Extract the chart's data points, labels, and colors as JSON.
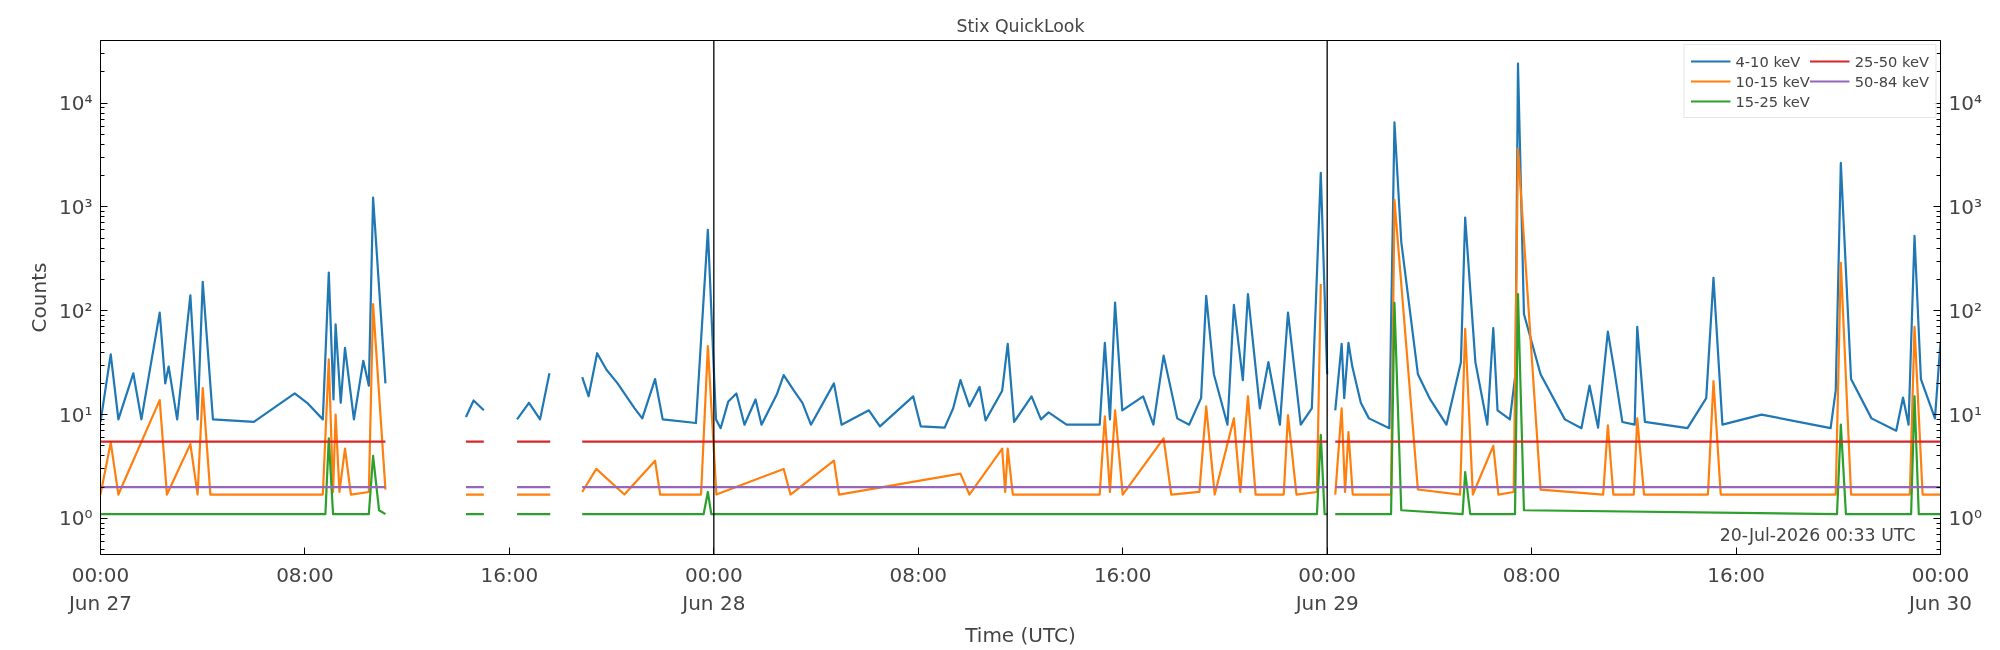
{
  "chart_data": {
    "type": "line",
    "title": "Stix QuickLook",
    "xlabel": "Time (UTC)",
    "ylabel": "Counts",
    "log": "y",
    "grid": false,
    "legend": "top right",
    "marker": "none",
    "line_style": "solid",
    "xlim": [
      "2026-06-27T00:00",
      "2026-06-30T00:00"
    ],
    "ylim": [
      0.45,
      40000
    ],
    "xticks": [
      {
        "value": "2026-06-27T00:00",
        "label": "00:00\nJun 27"
      },
      {
        "value": "2026-06-27T08:00",
        "label": "08:00"
      },
      {
        "value": "2026-06-27T16:00",
        "label": "16:00"
      },
      {
        "value": "2026-06-28T00:00",
        "label": "00:00\nJun 28"
      },
      {
        "value": "2026-06-28T08:00",
        "label": "08:00"
      },
      {
        "value": "2026-06-28T16:00",
        "label": "16:00"
      },
      {
        "value": "2026-06-29T00:00",
        "label": "00:00\nJun 29"
      },
      {
        "value": "2026-06-29T08:00",
        "label": "08:00"
      },
      {
        "value": "2026-06-29T16:00",
        "label": "16:00"
      },
      {
        "value": "2026-06-30T00:00",
        "label": "00:00\nJun 30"
      }
    ],
    "yticks": [
      {
        "value": 1,
        "label": "10⁰"
      },
      {
        "value": 10,
        "label": "10¹"
      },
      {
        "value": 100,
        "label": "10²"
      },
      {
        "value": 1000,
        "label": "10³"
      },
      {
        "value": 10000,
        "label": "10⁴"
      }
    ],
    "ref_lines": [
      {
        "axis": "x",
        "value": "2026-06-28T00:00",
        "color": "#000000"
      },
      {
        "axis": "x",
        "value": "2026-06-29T00:00",
        "color": "#000000"
      }
    ],
    "annotations": [
      "20-Jul-2026 00:33 UTC"
    ],
    "series": [
      {
        "name": "4-10 keV",
        "color": "#1f77b4",
        "x": [
          "2026-06-27T00:00",
          "2026-06-27T00:24",
          "2026-06-27T00:42",
          "2026-06-27T01:17",
          "2026-06-27T01:36",
          "2026-06-27T02:19",
          "2026-06-27T02:32",
          "2026-06-27T02:40",
          "2026-06-27T03:00",
          "2026-06-27T03:31",
          "2026-06-27T03:48",
          "2026-06-27T04:00",
          "2026-06-27T04:24",
          "2026-06-27T06:00",
          "2026-06-27T07:36",
          "2026-06-27T08:05",
          "2026-06-27T08:42",
          "2026-06-27T08:56",
          "2026-06-27T09:07",
          "2026-06-27T09:12",
          "2026-06-27T09:24",
          "2026-06-27T09:34",
          "2026-06-27T09:55",
          "2026-06-27T10:17",
          "2026-06-27T10:30",
          "2026-06-27T10:40",
          "2026-06-27T11:09",
          "2026-06-27T12:30",
          "2026-06-27T14:18",
          "2026-06-27T14:36",
          "2026-06-27T15:00",
          "2026-06-27T15:30",
          "2026-06-27T16:18",
          "2026-06-27T16:46",
          "2026-06-27T17:12",
          "2026-06-27T17:34",
          "2026-06-27T18:12",
          "2026-06-27T18:51",
          "2026-06-27T19:06",
          "2026-06-27T19:26",
          "2026-06-27T19:48",
          "2026-06-27T20:14",
          "2026-06-27T20:54",
          "2026-06-27T21:12",
          "2026-06-27T21:42",
          "2026-06-27T22:00",
          "2026-06-27T23:18",
          "2026-06-27T23:46",
          "2026-06-28T00:05",
          "2026-06-28T00:16",
          "2026-06-28T00:34",
          "2026-06-28T00:53",
          "2026-06-28T01:12",
          "2026-06-28T01:38",
          "2026-06-28T01:52",
          "2026-06-28T02:28",
          "2026-06-28T02:44",
          "2026-06-28T03:08",
          "2026-06-28T03:28",
          "2026-06-28T03:48",
          "2026-06-28T04:42",
          "2026-06-28T05:00",
          "2026-06-28T06:04",
          "2026-06-28T06:30",
          "2026-06-28T07:48",
          "2026-06-28T08:06",
          "2026-06-28T09:02",
          "2026-06-28T09:22",
          "2026-06-28T09:39",
          "2026-06-28T10:00",
          "2026-06-28T10:24",
          "2026-06-28T10:38",
          "2026-06-28T11:17",
          "2026-06-28T11:30",
          "2026-06-28T11:45",
          "2026-06-28T12:26",
          "2026-06-28T12:48",
          "2026-06-28T13:06",
          "2026-06-28T13:48",
          "2026-06-28T15:06",
          "2026-06-28T15:18",
          "2026-06-28T15:30",
          "2026-06-28T15:42",
          "2026-06-28T15:59",
          "2026-06-28T16:48",
          "2026-06-28T17:12",
          "2026-06-28T17:36",
          "2026-06-28T17:46",
          "2026-06-28T18:08",
          "2026-06-28T18:36",
          "2026-06-28T19:04",
          "2026-06-28T19:16",
          "2026-06-28T19:34",
          "2026-06-28T20:06",
          "2026-06-28T20:21",
          "2026-06-28T20:42",
          "2026-06-28T20:54",
          "2026-06-28T21:22",
          "2026-06-28T21:42",
          "2026-06-28T22:09",
          "2026-06-28T22:28",
          "2026-06-28T22:58",
          "2026-06-28T23:24",
          "2026-06-28T23:45",
          "2026-06-29T00:00",
          "2026-06-29T00:09",
          "2026-06-29T00:19",
          "2026-06-29T00:34",
          "2026-06-29T00:40",
          "2026-06-29T00:50",
          "2026-06-29T00:59",
          "2026-06-29T01:19",
          "2026-06-29T01:38",
          "2026-06-29T02:26",
          "2026-06-29T02:38",
          "2026-06-29T02:54",
          "2026-06-29T03:33",
          "2026-06-29T04:02",
          "2026-06-29T04:40",
          "2026-06-29T05:14",
          "2026-06-29T05:24",
          "2026-06-29T05:48",
          "2026-06-29T06:16",
          "2026-06-29T06:30",
          "2026-06-29T06:40",
          "2026-06-29T07:09",
          "2026-06-29T07:22",
          "2026-06-29T07:28",
          "2026-06-29T07:42",
          "2026-06-29T08:21",
          "2026-06-29T09:18",
          "2026-06-29T09:57",
          "2026-06-29T10:16",
          "2026-06-29T10:36",
          "2026-06-29T10:59",
          "2026-06-29T11:14",
          "2026-06-29T11:33",
          "2026-06-29T12:02",
          "2026-06-29T12:08",
          "2026-06-29T12:26",
          "2026-06-29T14:06",
          "2026-06-29T14:50",
          "2026-06-29T15:07",
          "2026-06-29T15:28",
          "2026-06-29T17:00",
          "2026-06-29T19:42",
          "2026-06-29T19:54",
          "2026-06-29T20:06",
          "2026-06-29T20:30",
          "2026-06-29T21:18",
          "2026-06-29T22:16",
          "2026-06-29T22:32",
          "2026-06-29T22:45",
          "2026-06-29T22:59",
          "2026-06-29T23:14",
          "2026-06-29T23:47",
          "2026-06-30T00:00"
        ],
        "values": [
          8.5,
          38,
          9,
          25,
          9,
          96,
          20,
          29,
          9,
          141,
          9,
          190,
          9,
          8.5,
          16,
          13,
          9,
          233,
          14,
          74,
          13,
          44,
          9,
          33,
          19,
          1230,
          20,
          null,
          9.5,
          13.7,
          11,
          null,
          9,
          13,
          9,
          25,
          null,
          23,
          15,
          39,
          27,
          20,
          11.5,
          9.2,
          22,
          9,
          8.3,
          600,
          9,
          7.4,
          13.4,
          16,
          8,
          14,
          8,
          15.7,
          24,
          17,
          13,
          8,
          20,
          8,
          11,
          7.7,
          15,
          7.7,
          7.5,
          11.5,
          21.5,
          12,
          18.5,
          8.8,
          17,
          48,
          8.5,
          15,
          9,
          10.5,
          8,
          8,
          49,
          9,
          120,
          11,
          15,
          8,
          37,
          24,
          9.2,
          8,
          14.4,
          139,
          24.5,
          8,
          114,
          21.5,
          145,
          11.5,
          32,
          8,
          96,
          8,
          11.5,
          2130,
          24.5,
          null,
          11,
          48,
          14.4,
          49,
          29,
          13,
          9.2,
          7.4,
          6500,
          460,
          24.5,
          14,
          8,
          32,
          790,
          32,
          8,
          68,
          11,
          9,
          24.5,
          24000,
          93,
          24.5,
          9,
          7.4,
          19,
          7.5,
          63,
          27,
          8.5,
          8,
          70,
          8.5,
          7.4,
          14.4,
          207,
          8,
          10,
          7.4,
          17,
          2650,
          22,
          9.2,
          7,
          14.6,
          8,
          525,
          22,
          9.2,
          50
        ]
      },
      {
        "name": "10-15 keV",
        "color": "#ff7f0e",
        "x": [
          "2026-06-27T00:00",
          "2026-06-27T00:24",
          "2026-06-27T00:42",
          "2026-06-27T02:19",
          "2026-06-27T02:36",
          "2026-06-27T03:31",
          "2026-06-27T03:48",
          "2026-06-27T04:00",
          "2026-06-27T04:18",
          "2026-06-27T08:42",
          "2026-06-27T08:56",
          "2026-06-27T09:06",
          "2026-06-27T09:12",
          "2026-06-27T09:21",
          "2026-06-27T09:34",
          "2026-06-27T09:48",
          "2026-06-27T10:30",
          "2026-06-27T10:40",
          "2026-06-27T11:09",
          "2026-06-27T12:30",
          "2026-06-27T14:18",
          "2026-06-27T15:00",
          "2026-06-27T15:30",
          "2026-06-27T16:18",
          "2026-06-27T17:36",
          "2026-06-27T18:12",
          "2026-06-27T18:51",
          "2026-06-27T19:24",
          "2026-06-27T20:30",
          "2026-06-27T21:42",
          "2026-06-27T21:54",
          "2026-06-27T23:30",
          "2026-06-27T23:46",
          "2026-06-28T00:06",
          "2026-06-28T02:44",
          "2026-06-28T03:00",
          "2026-06-28T04:42",
          "2026-06-28T04:54",
          "2026-06-28T09:39",
          "2026-06-28T10:00",
          "2026-06-28T11:17",
          "2026-06-28T11:24",
          "2026-06-28T11:30",
          "2026-06-28T11:42",
          "2026-06-28T15:06",
          "2026-06-28T15:18",
          "2026-06-28T15:30",
          "2026-06-28T15:42",
          "2026-06-28T16:00",
          "2026-06-28T17:36",
          "2026-06-28T17:54",
          "2026-06-28T19:00",
          "2026-06-28T19:16",
          "2026-06-28T19:36",
          "2026-06-28T20:21",
          "2026-06-28T20:36",
          "2026-06-28T20:54",
          "2026-06-28T21:12",
          "2026-06-28T22:18",
          "2026-06-28T22:28",
          "2026-06-28T22:48",
          "2026-06-28T23:36",
          "2026-06-28T23:45",
          "2026-06-29T00:00",
          "2026-06-29T00:09",
          "2026-06-29T00:19",
          "2026-06-29T00:34",
          "2026-06-29T00:42",
          "2026-06-29T00:50",
          "2026-06-29T01:00",
          "2026-06-29T02:30",
          "2026-06-29T02:38",
          "2026-06-29T03:33",
          "2026-06-29T05:12",
          "2026-06-29T05:24",
          "2026-06-29T05:42",
          "2026-06-29T06:30",
          "2026-06-29T06:42",
          "2026-06-29T07:18",
          "2026-06-29T07:28",
          "2026-06-29T08:21",
          "2026-06-29T10:48",
          "2026-06-29T10:59",
          "2026-06-29T11:12",
          "2026-06-29T12:00",
          "2026-06-29T12:08",
          "2026-06-29T12:24",
          "2026-06-29T14:54",
          "2026-06-29T15:07",
          "2026-06-29T15:24",
          "2026-06-29T19:54",
          "2026-06-29T20:06",
          "2026-06-29T20:30",
          "2026-06-29T22:48",
          "2026-06-29T22:59",
          "2026-06-29T23:18",
          "2026-06-30T00:00"
        ],
        "values": [
          1.7,
          5.4,
          1.7,
          13.8,
          1.7,
          5.2,
          1.7,
          18,
          1.7,
          1.7,
          34,
          1.8,
          10,
          1.8,
          4.7,
          1.7,
          1.8,
          116,
          1.9,
          null,
          1.7,
          1.7,
          null,
          1.7,
          1.7,
          null,
          1.8,
          3,
          1.7,
          3.6,
          1.7,
          1.7,
          45.7,
          1.7,
          3,
          1.7,
          3.6,
          1.7,
          2.7,
          1.7,
          4.7,
          1.8,
          4.7,
          1.7,
          1.7,
          9.6,
          1.8,
          11,
          1.7,
          5.9,
          1.7,
          1.8,
          12,
          1.7,
          9.2,
          1.8,
          15,
          1.7,
          1.7,
          9.9,
          1.7,
          1.8,
          181,
          null,
          null,
          1.7,
          11.5,
          1.8,
          6.8,
          1.7,
          1.7,
          1170,
          1.9,
          1.7,
          67,
          1.7,
          5,
          1.7,
          1.8,
          3600,
          1.9,
          1.7,
          7.9,
          1.7,
          1.7,
          9.2,
          1.7,
          1.7,
          21,
          1.7,
          1.7,
          290,
          1.7,
          1.7,
          70,
          1.7,
          1.7
        ]
      },
      {
        "name": "15-25 keV",
        "color": "#2ca02c",
        "x": [
          "2026-06-27T00:00",
          "2026-06-27T08:48",
          "2026-06-27T08:56",
          "2026-06-27T09:06",
          "2026-06-27T10:30",
          "2026-06-27T10:40",
          "2026-06-27T10:54",
          "2026-06-27T11:09",
          "2026-06-27T12:30",
          "2026-06-27T14:18",
          "2026-06-27T15:00",
          "2026-06-27T15:30",
          "2026-06-27T16:18",
          "2026-06-27T17:36",
          "2026-06-27T18:12",
          "2026-06-27T18:51",
          "2026-06-27T23:36",
          "2026-06-27T23:46",
          "2026-06-27T23:54",
          "2026-06-28T23:36",
          "2026-06-28T23:45",
          "2026-06-28T23:54",
          "2026-06-29T00:00",
          "2026-06-29T00:09",
          "2026-06-29T00:19",
          "2026-06-29T02:30",
          "2026-06-29T02:38",
          "2026-06-29T02:54",
          "2026-06-29T05:18",
          "2026-06-29T05:24",
          "2026-06-29T05:36",
          "2026-06-29T07:21",
          "2026-06-29T07:28",
          "2026-06-29T07:42",
          "2026-06-29T19:57",
          "2026-06-29T20:06",
          "2026-06-29T20:18",
          "2026-06-29T22:51",
          "2026-06-29T22:59",
          "2026-06-29T23:09",
          "2026-06-30T00:00"
        ],
        "values": [
          1.1,
          1.1,
          5.9,
          1.1,
          1.1,
          4,
          1.2,
          1.1,
          null,
          1.1,
          1.1,
          null,
          1.1,
          1.1,
          null,
          1.1,
          1.1,
          1.8,
          1.1,
          1.1,
          6.4,
          1.1,
          1.1,
          null,
          1.1,
          1.1,
          119,
          1.2,
          1.1,
          2.8,
          1.1,
          1.1,
          145,
          1.2,
          1.1,
          8,
          1.1,
          1.1,
          15,
          1.1,
          1.1
        ]
      },
      {
        "name": "25-50 keV",
        "color": "#d62728",
        "x": [
          "2026-06-27T00:00",
          "2026-06-27T11:09",
          "2026-06-27T12:30",
          "2026-06-27T14:18",
          "2026-06-27T15:00",
          "2026-06-27T15:30",
          "2026-06-27T16:18",
          "2026-06-27T17:36",
          "2026-06-27T18:12",
          "2026-06-27T18:51",
          "2026-06-29T00:00",
          "2026-06-29T00:09",
          "2026-06-29T00:19",
          "2026-06-30T00:00"
        ],
        "values": [
          5.5,
          5.5,
          null,
          5.5,
          5.5,
          null,
          5.5,
          5.5,
          null,
          5.5,
          5.5,
          null,
          5.5,
          5.5
        ]
      },
      {
        "name": "50-84 keV",
        "color": "#9467bd",
        "x": [
          "2026-06-27T00:00",
          "2026-06-27T11:09",
          "2026-06-27T12:30",
          "2026-06-27T14:18",
          "2026-06-27T15:00",
          "2026-06-27T15:30",
          "2026-06-27T16:18",
          "2026-06-27T17:36",
          "2026-06-27T18:12",
          "2026-06-27T18:51",
          "2026-06-29T00:00",
          "2026-06-29T00:09",
          "2026-06-29T00:19",
          "2026-06-30T00:00"
        ],
        "values": [
          2.0,
          2.0,
          null,
          2.0,
          2.0,
          null,
          2.0,
          2.0,
          null,
          2.0,
          2.0,
          null,
          2.0,
          2.0
        ]
      }
    ]
  }
}
